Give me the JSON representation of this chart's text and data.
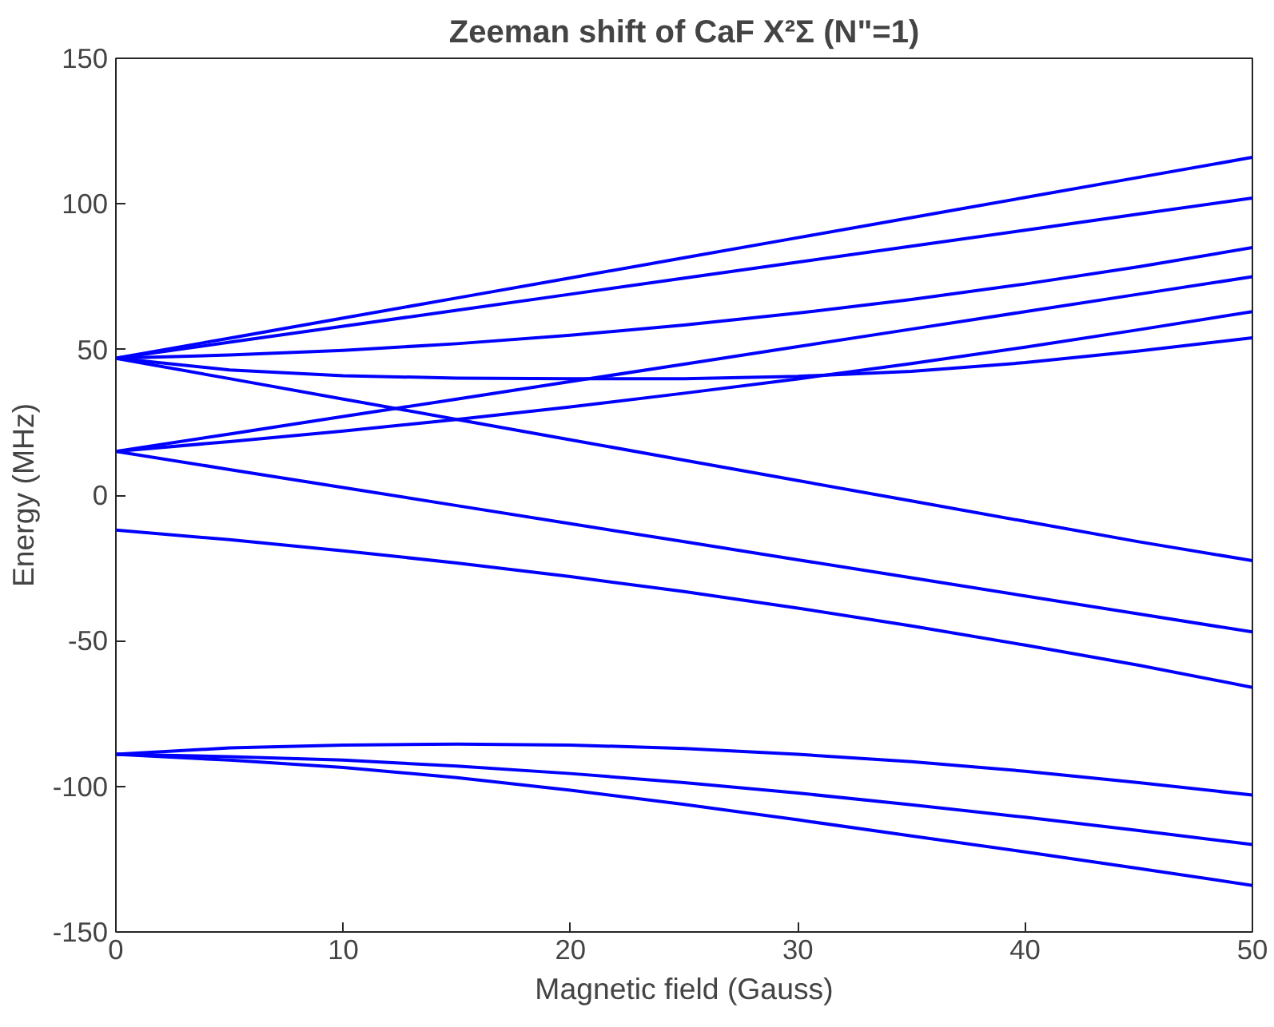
{
  "chart_data": {
    "type": "line",
    "title": "Zeeman shift of CaF X²Σ (N\"=1)",
    "xlabel": "Magnetic field (Gauss)",
    "ylabel": "Energy (MHz)",
    "x": [
      0,
      5,
      10,
      15,
      20,
      25,
      30,
      35,
      40,
      45,
      50
    ],
    "xlim": [
      0,
      50
    ],
    "xticks": [
      0,
      10,
      20,
      30,
      40,
      50
    ],
    "ylim": [
      -150,
      150
    ],
    "yticks": [
      -150,
      -100,
      -50,
      0,
      50,
      100,
      150
    ],
    "grid": false,
    "marker": "none",
    "line_style": "solid",
    "series": [
      {
        "color": "#0000ff",
        "values": [
          47,
          53.9,
          60.8,
          67.7,
          74.6,
          81.5,
          88.4,
          95.3,
          102.2,
          109.1,
          116
        ]
      },
      {
        "color": "#0000ff",
        "values": [
          47,
          52.5,
          58,
          63.5,
          69,
          74.5,
          80,
          85.5,
          91,
          96.5,
          102
        ]
      },
      {
        "color": "#0000ff",
        "values": [
          47,
          48.1,
          49.7,
          52,
          54.9,
          58.4,
          62.5,
          67.2,
          72.5,
          78.4,
          85
        ]
      },
      {
        "color": "#0000ff",
        "values": [
          47,
          43,
          41,
          40.2,
          40,
          40,
          40.8,
          42.5,
          45.5,
          49.5,
          54
        ]
      },
      {
        "color": "#0000ff",
        "values": [
          47,
          40,
          33,
          26,
          19,
          12,
          5,
          -2,
          -9,
          -16,
          -22.5
        ]
      },
      {
        "color": "#0000ff",
        "values": [
          15,
          21,
          27,
          33,
          39,
          45,
          51,
          57,
          63,
          69,
          75
        ]
      },
      {
        "color": "#0000ff",
        "values": [
          15,
          18.4,
          22,
          26,
          30.3,
          35,
          39.9,
          45.2,
          50.8,
          56.8,
          63
        ]
      },
      {
        "color": "#0000ff",
        "values": [
          15,
          8.8,
          2.6,
          -3.6,
          -9.8,
          -16,
          -22.2,
          -28.4,
          -34.6,
          -40.8,
          -47
        ]
      },
      {
        "color": "#0000ff",
        "values": [
          -12,
          -15.3,
          -19.1,
          -23.3,
          -28,
          -33.1,
          -38.8,
          -44.9,
          -51.5,
          -58.4,
          -66
        ]
      },
      {
        "color": "#0000ff",
        "values": [
          -89,
          -86.8,
          -85.8,
          -85.5,
          -85.8,
          -87,
          -89,
          -91.5,
          -94.8,
          -98.7,
          -103
        ]
      },
      {
        "color": "#0000ff",
        "values": [
          -89,
          -89.8,
          -91,
          -93,
          -95.6,
          -98.7,
          -102.3,
          -106.3,
          -110.6,
          -115.2,
          -120
        ]
      },
      {
        "color": "#0000ff",
        "values": [
          -89,
          -91,
          -93.5,
          -97,
          -101.3,
          -106.2,
          -111.5,
          -117,
          -122.5,
          -128.2,
          -134
        ]
      }
    ]
  }
}
